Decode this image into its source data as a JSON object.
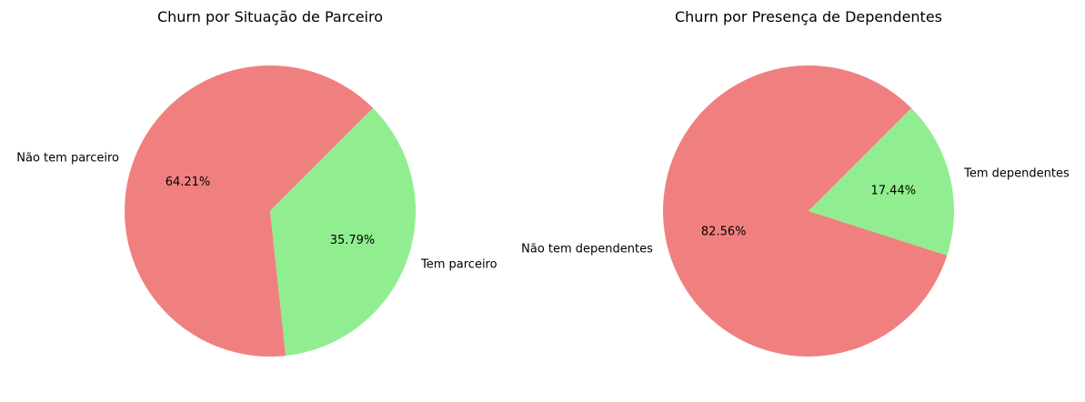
{
  "chart_data": [
    {
      "type": "pie",
      "title": "Churn por Situação de Parceiro",
      "start_angle_deg": 45,
      "direction": "counterclockwise",
      "slices": [
        {
          "label": "Não tem parceiro",
          "value": 64.21,
          "pct_text": "64.21%",
          "color": "#f08080"
        },
        {
          "label": "Tem parceiro",
          "value": 35.79,
          "pct_text": "35.79%",
          "color": "#90ee90"
        }
      ]
    },
    {
      "type": "pie",
      "title": "Churn por Presença de Dependentes",
      "start_angle_deg": 45,
      "direction": "counterclockwise",
      "slices": [
        {
          "label": "Não tem dependentes",
          "value": 82.56,
          "pct_text": "82.56%",
          "color": "#f08080"
        },
        {
          "label": "Tem dependentes",
          "value": 17.44,
          "pct_text": "17.44%",
          "color": "#90ee90"
        }
      ]
    }
  ]
}
